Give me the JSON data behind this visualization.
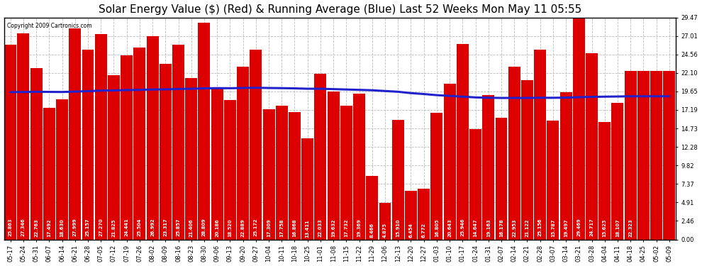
{
  "title": "Solar Energy Value ($) (Red) & Running Average (Blue) Last 52 Weeks Mon May 11 05:55",
  "copyright": "Copyright 2009 Cartronics.com",
  "bar_color": "#dd0000",
  "line_color": "#2222cc",
  "background_color": "#ffffff",
  "plot_bg_color": "#ffffff",
  "grid_color": "#bbbbbb",
  "yticks": [
    0.0,
    2.46,
    4.91,
    7.37,
    9.82,
    12.28,
    14.73,
    17.19,
    19.65,
    22.1,
    24.56,
    27.01,
    29.47
  ],
  "categories": [
    "05-17",
    "05-24",
    "05-31",
    "06-07",
    "06-14",
    "06-21",
    "06-28",
    "07-05",
    "07-12",
    "07-19",
    "07-26",
    "08-02",
    "08-09",
    "08-16",
    "08-23",
    "08-30",
    "09-06",
    "09-13",
    "09-20",
    "09-27",
    "10-04",
    "10-11",
    "10-18",
    "10-25",
    "11-01",
    "11-08",
    "11-15",
    "11-22",
    "11-29",
    "12-06",
    "12-13",
    "12-20",
    "12-27",
    "01-03",
    "01-10",
    "01-17",
    "01-24",
    "01-31",
    "02-07",
    "02-14",
    "02-21",
    "02-28",
    "03-07",
    "03-14",
    "03-21",
    "03-28",
    "04-04",
    "04-11",
    "04-18",
    "04-25",
    "05-02",
    "05-09"
  ],
  "bar_values": [
    25.863,
    27.346,
    22.763,
    17.492,
    18.63,
    27.999,
    25.157,
    27.27,
    21.825,
    24.441,
    25.504,
    26.992,
    23.317,
    25.857,
    21.406,
    28.809,
    20.186,
    18.52,
    22.889,
    25.172,
    17.309,
    17.758,
    16.868,
    13.411,
    22.033,
    19.632,
    17.732,
    19.369,
    8.466,
    4.875,
    15.91,
    6.454,
    6.772,
    16.805,
    20.643,
    25.946,
    14.647,
    19.163,
    16.178,
    22.953,
    21.122,
    25.156,
    15.787,
    19.497,
    29.469,
    24.717,
    15.625,
    18.107,
    22.323,
    22.323,
    22.323,
    22.323
  ],
  "bar_labels": [
    "25.863",
    "27.346",
    "22.763",
    "17.492",
    "18.630",
    "27.999",
    "25.157",
    "27.270",
    "21.825",
    "24.441",
    "25.504",
    "26.992",
    "23.317",
    "25.857",
    "21.406",
    "28.809",
    "20.186",
    "18.520",
    "22.889",
    "25.172",
    "17.309",
    "17.758",
    "16.868",
    "13.411",
    "22.033",
    "19.632",
    "17.732",
    "19.369",
    "8.466",
    "4.875",
    "15.910",
    "6.454",
    "6.772",
    "16.805",
    "20.643",
    "25.946",
    "14.647",
    "19.163",
    "16.178",
    "22.953",
    "21.122",
    "25.156",
    "15.787",
    "19.497",
    "29.469",
    "24.717",
    "15.625",
    "18.107",
    "22.323",
    "",
    "",
    ""
  ],
  "running_avg": [
    19.55,
    19.57,
    19.6,
    19.58,
    19.57,
    19.62,
    19.68,
    19.75,
    19.78,
    19.82,
    19.85,
    19.9,
    19.92,
    19.97,
    20.0,
    20.05,
    20.08,
    20.07,
    20.1,
    20.13,
    20.1,
    20.08,
    20.05,
    20.0,
    20.0,
    19.95,
    19.9,
    19.85,
    19.8,
    19.7,
    19.6,
    19.42,
    19.3,
    19.15,
    19.05,
    18.95,
    18.85,
    18.8,
    18.78,
    18.78,
    18.78,
    18.8,
    18.8,
    18.82,
    18.88,
    18.92,
    18.95,
    18.97,
    19.0,
    19.0,
    19.0,
    19.0
  ],
  "ylim": [
    0,
    29.47
  ],
  "title_fontsize": 11,
  "tick_fontsize": 6,
  "bar_label_fontsize": 4.8
}
